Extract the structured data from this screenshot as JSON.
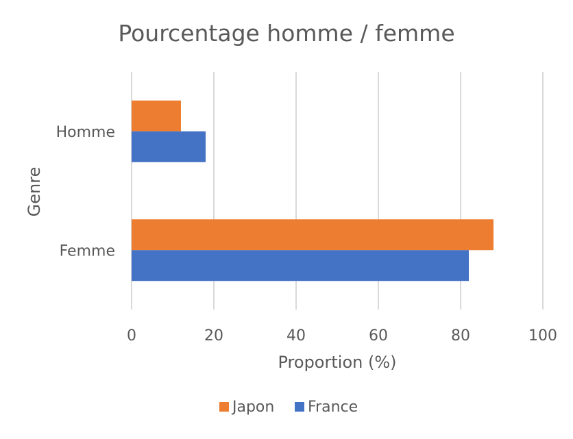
{
  "chart_data": {
    "type": "bar",
    "orientation": "horizontal",
    "title": "Pourcentage homme / femme",
    "xlabel": "Proportion (%)",
    "ylabel": "Genre",
    "categories": [
      "Homme",
      "Femme"
    ],
    "series": [
      {
        "name": "Japon",
        "values": [
          12,
          88
        ],
        "color": "#ED7D31"
      },
      {
        "name": "France",
        "values": [
          18,
          82
        ],
        "color": "#4472C4"
      }
    ],
    "xlim": [
      0,
      100
    ],
    "xticks": [
      0,
      20,
      40,
      60,
      80,
      100
    ],
    "grid": "vertical",
    "legend_position": "bottom"
  }
}
